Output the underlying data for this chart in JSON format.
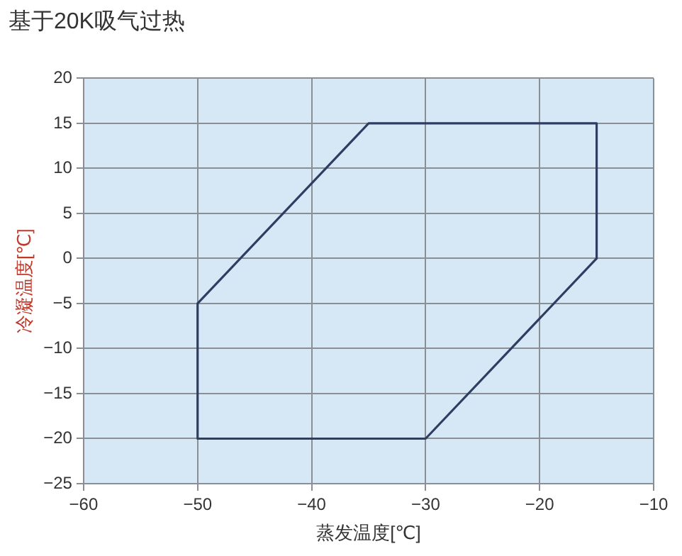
{
  "chart_data": {
    "type": "line",
    "title": "基于20K吸气过热",
    "xlabel": "蒸发温度[℃]",
    "ylabel": "冷凝温度[℃]",
    "series": [
      {
        "color": "#2f3d63",
        "x": [
          -50,
          -35,
          -15,
          -15
        ],
        "values": [
          -5,
          15,
          15,
          0
        ]
      },
      {
        "color": "#2f3d63",
        "x": [
          -50,
          -50,
          -30,
          -15
        ],
        "values": [
          -5,
          -20,
          -20,
          0
        ]
      }
    ],
    "xlim": [
      -60,
      -10
    ],
    "xticks": [
      -60,
      -50,
      -40,
      -30,
      -20,
      -10
    ],
    "ylim": [
      -25,
      20
    ],
    "yticks": [
      -25,
      -20,
      -15,
      -10,
      -5,
      0,
      5,
      10,
      15,
      20
    ],
    "grid": true,
    "legend": false,
    "marker": "none",
    "line_style": "solid"
  }
}
